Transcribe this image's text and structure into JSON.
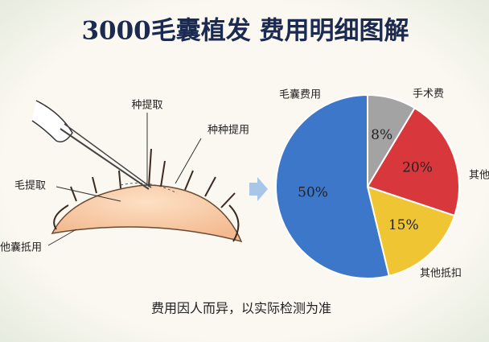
{
  "chart_data": {
    "type": "pie",
    "title": "3000毛囊植发 费用明细图解",
    "categories": [
      "手术费",
      "其他",
      "其他抵扣",
      "毛囊费用"
    ],
    "values": [
      8,
      20,
      15,
      50
    ],
    "value_labels": [
      "8%",
      "20%",
      "15%",
      "50%"
    ],
    "colors": [
      "#a3a3a3",
      "#d8383c",
      "#f0c534",
      "#3d77c9"
    ],
    "annotations": [
      "种提取",
      "种种提用",
      "毛提取",
      "他囊抵用"
    ],
    "footnote": "费用因人而异，以实际检测为准"
  }
}
